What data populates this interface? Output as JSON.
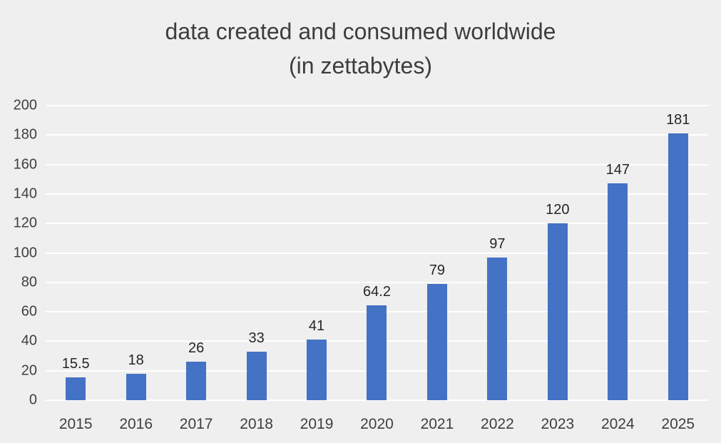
{
  "chart": {
    "title_line1": "data created and consumed worldwide",
    "title_line2": "(in zettabytes)"
  },
  "chart_data": {
    "type": "bar",
    "title": "data created and consumed worldwide (in zettabytes)",
    "categories": [
      "2015",
      "2016",
      "2017",
      "2018",
      "2019",
      "2020",
      "2021",
      "2022",
      "2023",
      "2024",
      "2025"
    ],
    "values": [
      15.5,
      18,
      26,
      33,
      41,
      64.2,
      79,
      97,
      120,
      147,
      181
    ],
    "value_labels": [
      "15.5",
      "18",
      "26",
      "33",
      "41",
      "64.2",
      "79",
      "97",
      "120",
      "147",
      "181"
    ],
    "xlabel": "",
    "ylabel": "",
    "ylim": [
      0,
      200
    ],
    "ytick_step": 20,
    "grid": true,
    "legend": "none",
    "bar_color": "#4472c4",
    "background_color": "#efefef",
    "gridline_color": "#ffffff",
    "text_color": "#3f3f3f"
  }
}
